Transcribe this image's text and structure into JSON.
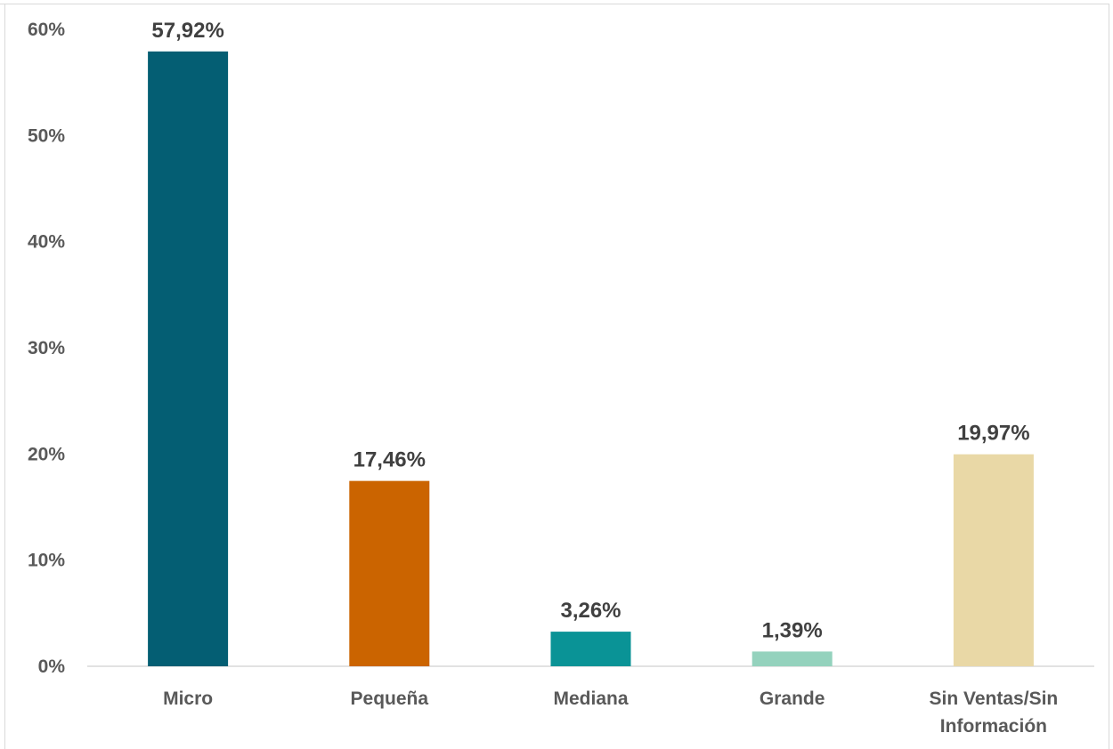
{
  "chart_data": {
    "type": "bar",
    "title": "",
    "xlabel": "",
    "ylabel": "",
    "categories": [
      [
        "Micro"
      ],
      [
        "Pequeña"
      ],
      [
        "Mediana"
      ],
      [
        "Grande"
      ],
      [
        "Sin Ventas/Sin",
        "Información"
      ]
    ],
    "values": [
      57.92,
      17.46,
      3.26,
      1.39,
      19.97
    ],
    "data_labels": [
      "57,92%",
      "17,46%",
      "3,26%",
      "1,39%",
      "19,97%"
    ],
    "colors": [
      "#045e73",
      "#cb6400",
      "#0a9396",
      "#94d2bd",
      "#e9d8a6"
    ],
    "ylim": [
      0,
      60
    ],
    "yticks": [
      0,
      10,
      20,
      30,
      40,
      50,
      60
    ],
    "ytick_labels": [
      "0%",
      "10%",
      "20%",
      "30%",
      "40%",
      "50%",
      "60%"
    ],
    "grid": false,
    "legend": "none"
  }
}
